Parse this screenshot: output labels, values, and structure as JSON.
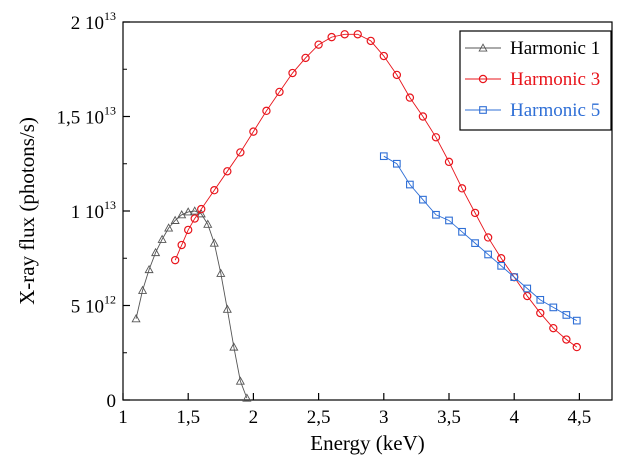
{
  "chart_data": {
    "type": "scatter",
    "title": "",
    "xlabel": "Energy (keV)",
    "ylabel": "X-ray flux (photons/s)",
    "xlim": [
      1.0,
      4.75
    ],
    "ylim": [
      0,
      20000000000000.0
    ],
    "x_ticks": [
      {
        "value": 1.0,
        "label": "1"
      },
      {
        "value": 1.5,
        "label": "1,5"
      },
      {
        "value": 2.0,
        "label": "2"
      },
      {
        "value": 2.5,
        "label": "2,5"
      },
      {
        "value": 3.0,
        "label": "3"
      },
      {
        "value": 3.5,
        "label": "3,5"
      },
      {
        "value": 4.0,
        "label": "4"
      },
      {
        "value": 4.5,
        "label": "4,5"
      }
    ],
    "y_ticks": [
      {
        "value": 0,
        "mantissa": "0",
        "exponent": ""
      },
      {
        "value": 5000000000000.0,
        "mantissa": "5 10",
        "exponent": "12"
      },
      {
        "value": 10000000000000.0,
        "mantissa": "1 10",
        "exponent": "13"
      },
      {
        "value": 15000000000000.0,
        "mantissa": "1,5 10",
        "exponent": "13"
      },
      {
        "value": 20000000000000.0,
        "mantissa": "2 10",
        "exponent": "13"
      }
    ],
    "grid": false,
    "legend_position": "top-right",
    "series": [
      {
        "name": "Harmonic 1",
        "color": "#555555",
        "marker": "triangle",
        "line": true,
        "x": [
          1.1,
          1.15,
          1.2,
          1.25,
          1.3,
          1.35,
          1.4,
          1.45,
          1.5,
          1.55,
          1.6,
          1.65,
          1.7,
          1.75,
          1.8,
          1.85,
          1.9,
          1.95
        ],
        "y": [
          4300000000000.0,
          5800000000000.0,
          6900000000000.0,
          7800000000000.0,
          8500000000000.0,
          9100000000000.0,
          9500000000000.0,
          9800000000000.0,
          9950000000000.0,
          10000000000000.0,
          9850000000000.0,
          9300000000000.0,
          8300000000000.0,
          6700000000000.0,
          4800000000000.0,
          2800000000000.0,
          1000000000000.0,
          100000000000.0
        ]
      },
      {
        "name": "Harmonic 3",
        "color": "#e8141b",
        "marker": "circle",
        "line": true,
        "x": [
          1.4,
          1.45,
          1.5,
          1.55,
          1.6,
          1.7,
          1.8,
          1.9,
          2.0,
          2.1,
          2.2,
          2.3,
          2.4,
          2.5,
          2.6,
          2.7,
          2.8,
          2.9,
          3.0,
          3.1,
          3.2,
          3.3,
          3.4,
          3.5,
          3.6,
          3.7,
          3.8,
          3.9,
          4.0,
          4.1,
          4.2,
          4.3,
          4.4,
          4.48
        ],
        "y": [
          7400000000000.0,
          8200000000000.0,
          9000000000000.0,
          9600000000000.0,
          10100000000000.0,
          11100000000000.0,
          12100000000000.0,
          13100000000000.0,
          14200000000000.0,
          15300000000000.0,
          16300000000000.0,
          17300000000000.0,
          18100000000000.0,
          18800000000000.0,
          19200000000000.0,
          19350000000000.0,
          19350000000000.0,
          19000000000000.0,
          18200000000000.0,
          17200000000000.0,
          16000000000000.0,
          15000000000000.0,
          13900000000000.0,
          12600000000000.0,
          11200000000000.0,
          9900000000000.0,
          8600000000000.0,
          7500000000000.0,
          6500000000000.0,
          5500000000000.0,
          4600000000000.0,
          3800000000000.0,
          3200000000000.0,
          2800000000000.0
        ]
      },
      {
        "name": "Harmonic 5",
        "color": "#2f6fd6",
        "marker": "square",
        "line": true,
        "x": [
          3.0,
          3.1,
          3.2,
          3.3,
          3.4,
          3.5,
          3.6,
          3.7,
          3.8,
          3.9,
          4.0,
          4.1,
          4.2,
          4.3,
          4.4,
          4.48
        ],
        "y": [
          12900000000000.0,
          12500000000000.0,
          11400000000000.0,
          10600000000000.0,
          9800000000000.0,
          9500000000000.0,
          8900000000000.0,
          8300000000000.0,
          7700000000000.0,
          7100000000000.0,
          6500000000000.0,
          5900000000000.0,
          5300000000000.0,
          4900000000000.0,
          4500000000000.0,
          4200000000000.0
        ]
      }
    ]
  }
}
